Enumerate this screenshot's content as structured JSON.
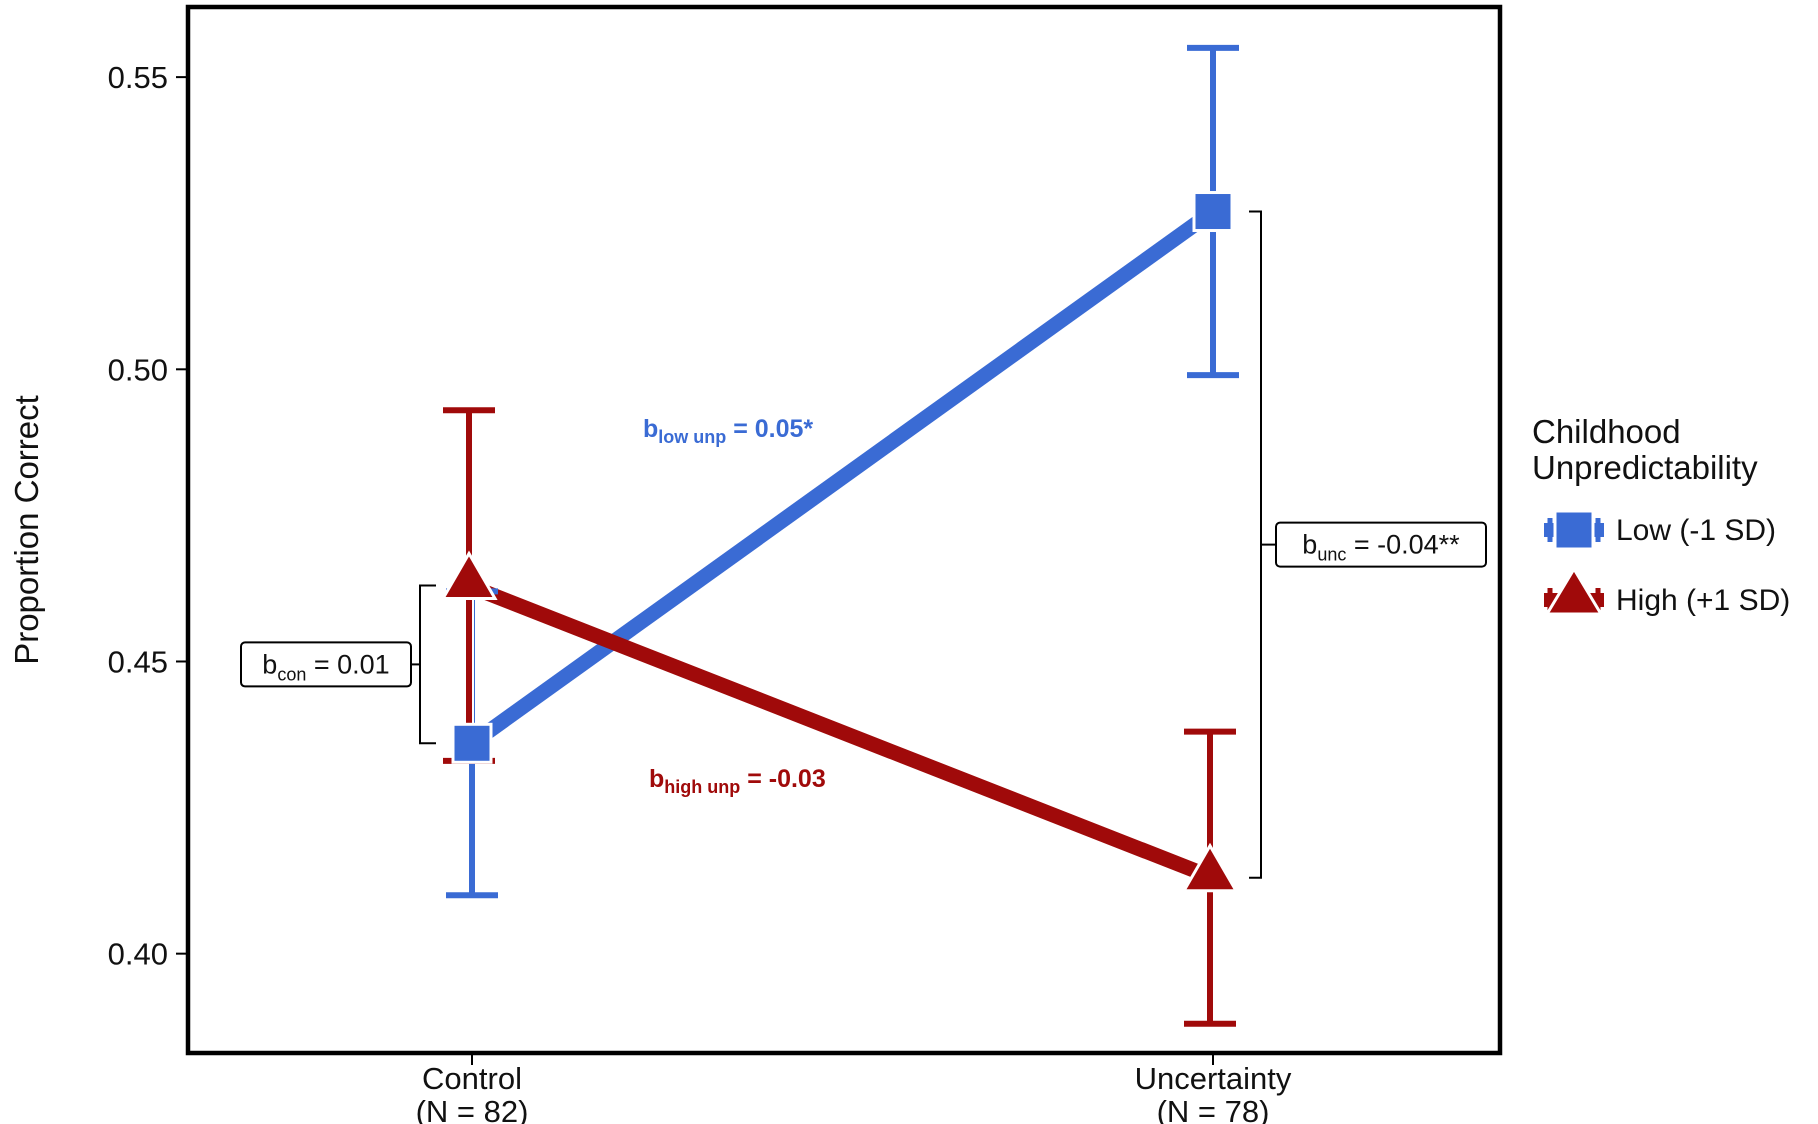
{
  "chart_data": {
    "type": "line",
    "title": "",
    "xlabel": "",
    "ylabel": "Proportion Correct",
    "ylim": [
      0.383,
      0.562
    ],
    "yticks": [
      0.4,
      0.45,
      0.5,
      0.55
    ],
    "ytick_labels": [
      "0.40",
      "0.45",
      "0.50",
      "0.55"
    ],
    "categories": [
      "Control",
      "Uncertainty"
    ],
    "category_sublabels": [
      "(N = 82)",
      "(N = 78)"
    ],
    "legend": {
      "title_lines": [
        "Childhood",
        "Unpredictability"
      ],
      "position": "right"
    },
    "series": [
      {
        "name": "Low (-1 SD)",
        "color": "#3a6bd4",
        "marker": "square",
        "values": [
          0.436,
          0.527
        ],
        "error_low": [
          0.41,
          0.499
        ],
        "error_high": [
          0.462,
          0.555
        ]
      },
      {
        "name": "High (+1 SD)",
        "color": "#a00a0a",
        "marker": "triangle",
        "values": [
          0.463,
          0.413
        ],
        "error_low": [
          0.433,
          0.388
        ],
        "error_high": [
          0.493,
          0.438
        ]
      }
    ],
    "slope_annotations": [
      {
        "b": "b",
        "sub": "low unp",
        "text": " = 0.05*",
        "series": 0
      },
      {
        "b": "b",
        "sub": "high unp",
        "text": " = -0.03",
        "series": 1
      }
    ],
    "bracket_annotations": [
      {
        "b": "b",
        "sub": "con",
        "text": " = 0.01",
        "category": 0
      },
      {
        "b": "b",
        "sub": "unc",
        "text": " = -0.04**",
        "category": 1
      }
    ],
    "grid": false
  }
}
